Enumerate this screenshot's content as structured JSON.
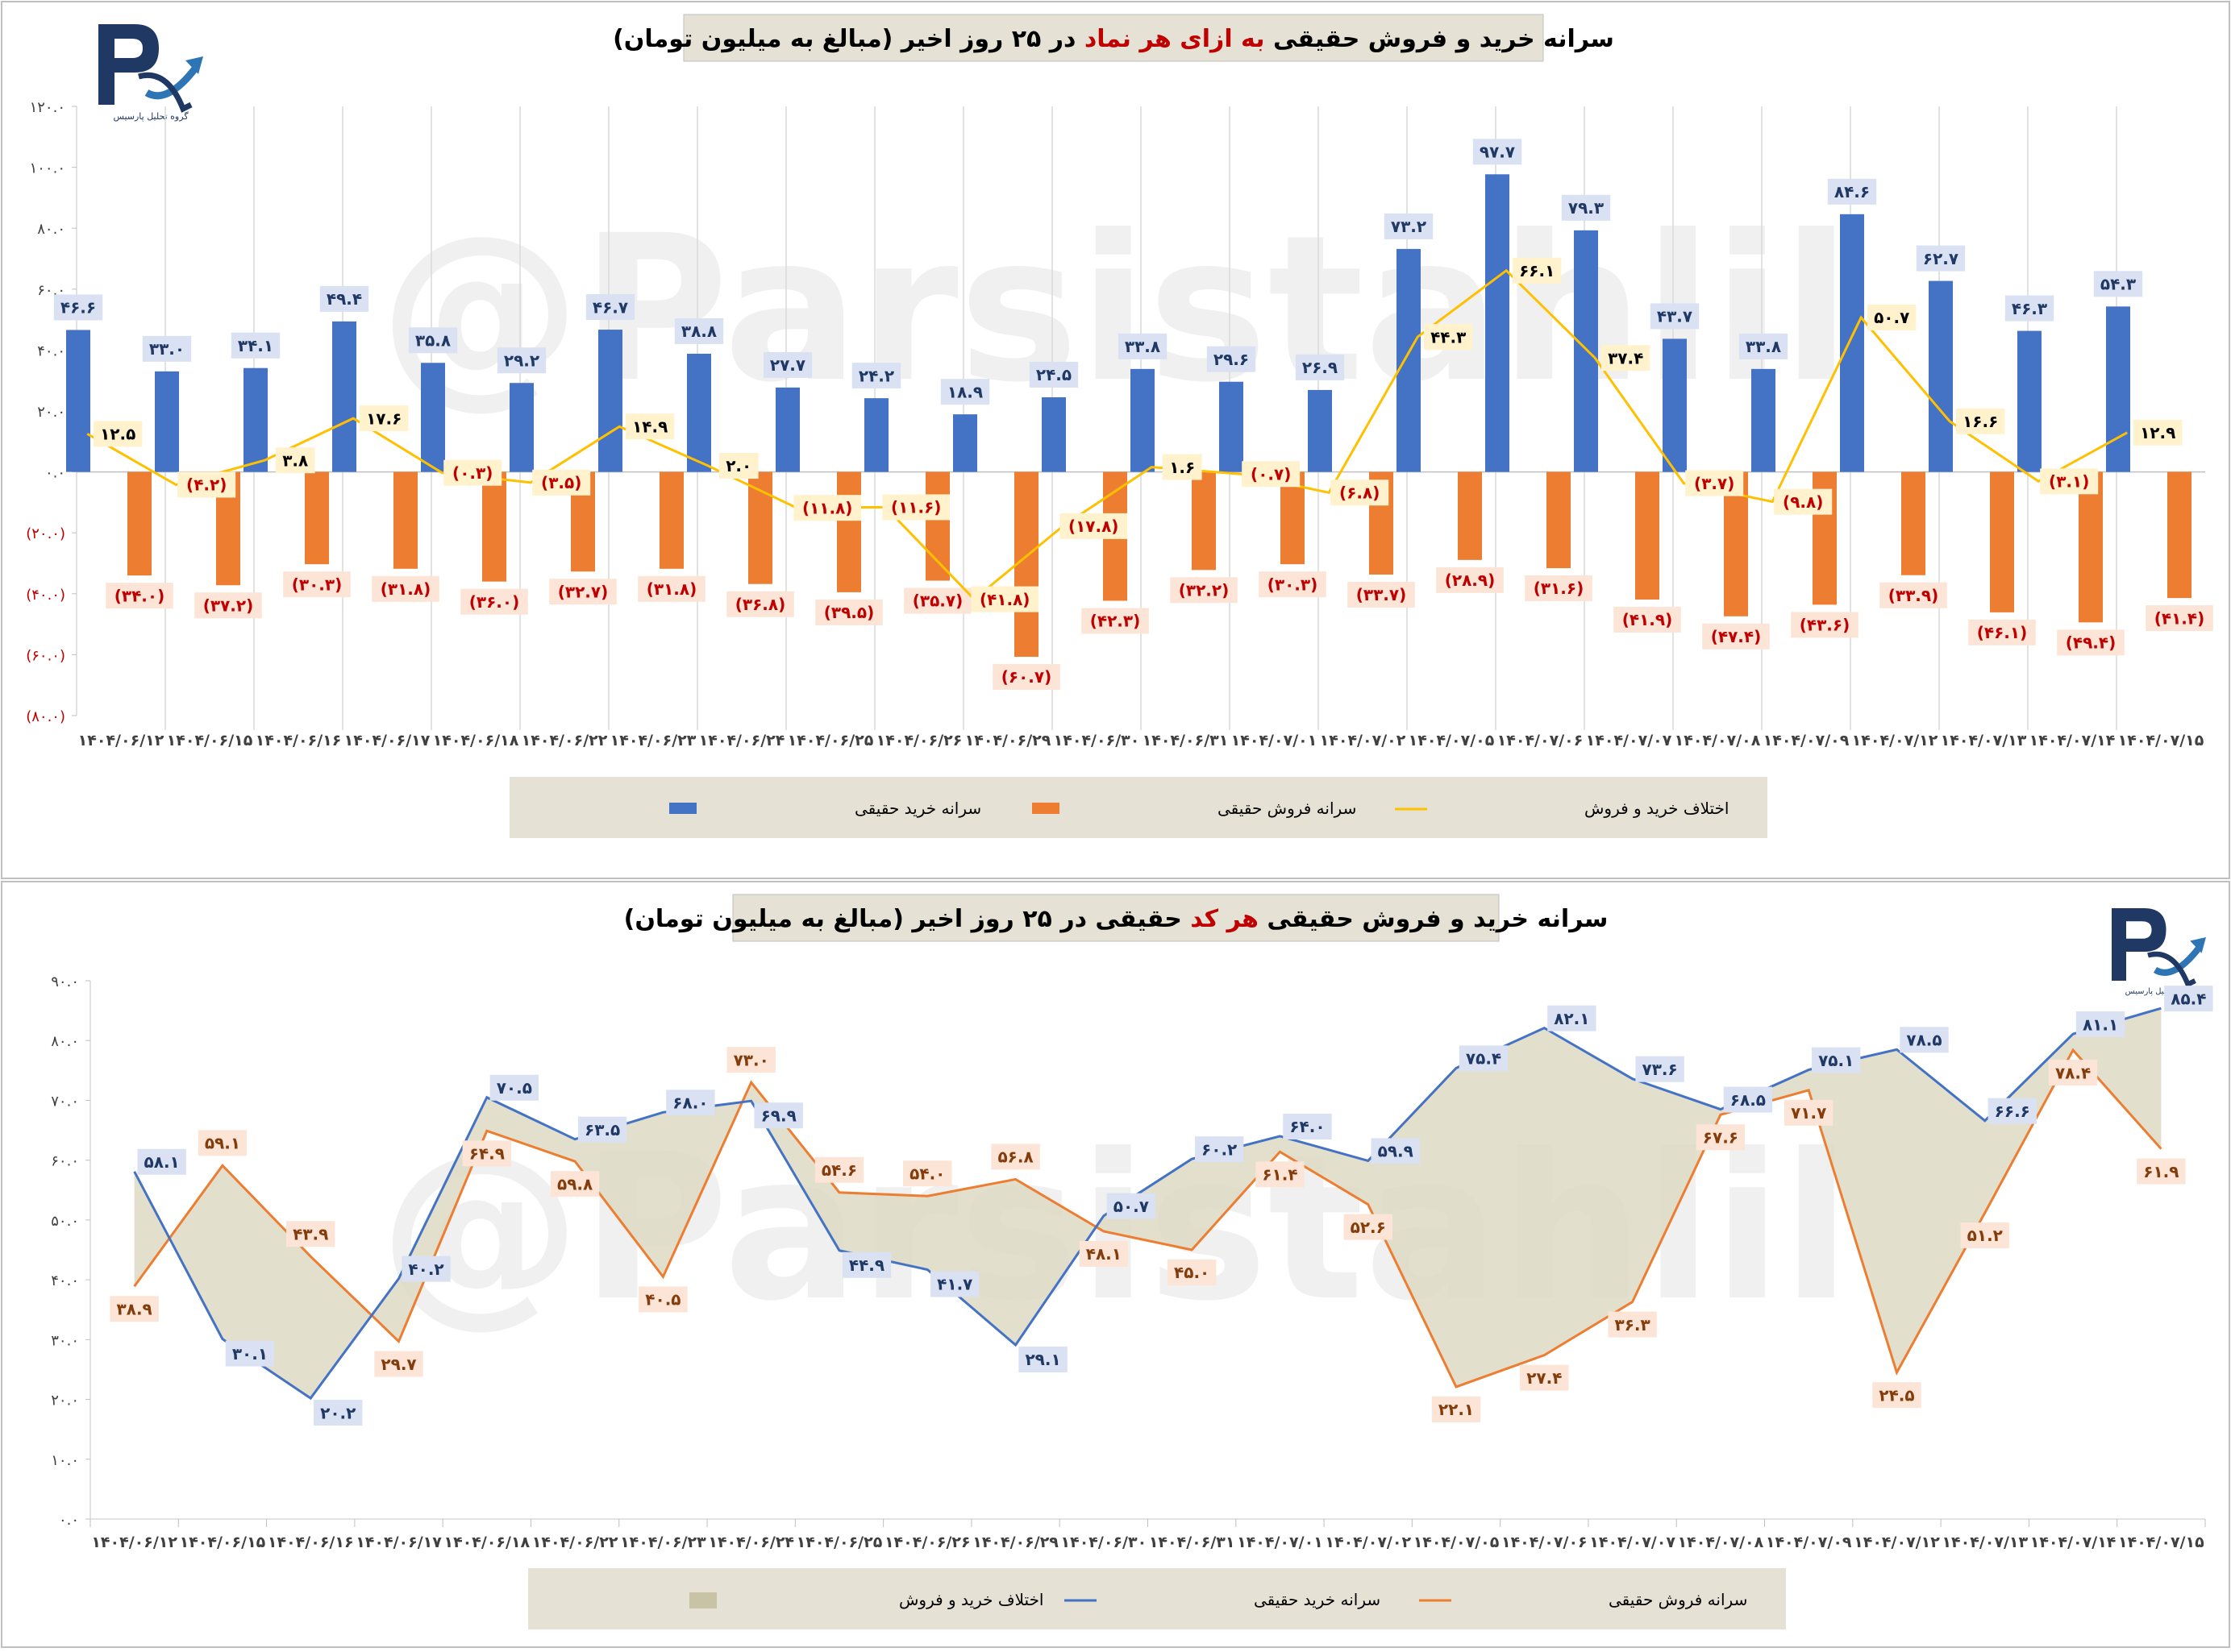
{
  "watermark": "@Parsistahlil",
  "logo": {
    "caption": "گروه تحلیل پارسیس",
    "icon": "pr-logo-arrow-icon"
  },
  "dates": [
    "۱۴۰۴/۰۶/۱۲",
    "۱۴۰۴/۰۶/۱۵",
    "۱۴۰۴/۰۶/۱۶",
    "۱۴۰۴/۰۶/۱۷",
    "۱۴۰۴/۰۶/۱۸",
    "۱۴۰۴/۰۶/۲۲",
    "۱۴۰۴/۰۶/۲۳",
    "۱۴۰۴/۰۶/۲۴",
    "۱۴۰۴/۰۶/۲۵",
    "۱۴۰۴/۰۶/۲۶",
    "۱۴۰۴/۰۶/۲۹",
    "۱۴۰۴/۰۶/۳۰",
    "۱۴۰۴/۰۶/۳۱",
    "۱۴۰۴/۰۷/۰۱",
    "۱۴۰۴/۰۷/۰۲",
    "۱۴۰۴/۰۷/۰۵",
    "۱۴۰۴/۰۷/۰۶",
    "۱۴۰۴/۰۷/۰۷",
    "۱۴۰۴/۰۷/۰۸",
    "۱۴۰۴/۰۷/۰۹",
    "۱۴۰۴/۰۷/۱۲",
    "۱۴۰۴/۰۷/۱۳",
    "۱۴۰۴/۰۷/۱۴",
    "۱۴۰۴/۰۷/۱۵"
  ],
  "colors": {
    "buy": "#4472C4",
    "sell": "#ED7D31",
    "diff": "#FFC000",
    "area": "#DDD9C4",
    "title_red": "#C00000",
    "legend_bg": "#E5E2D5",
    "label_blue_bg": "#D9E1F2",
    "label_orange_bg": "#FCE4D6",
    "label_yellow_bg": "#FFF2CC"
  },
  "chart_data": [
    {
      "type": "bar",
      "title_parts": [
        "سرانه خرید و فروش حقیقی ",
        "به ازای هر نماد",
        " در ۲۵ روز اخیر (مبالغ به میلیون تومان)"
      ],
      "ylim": [
        -80,
        120
      ],
      "yticks": [
        120,
        100,
        80,
        60,
        40,
        20,
        0,
        -20,
        -40,
        -60,
        -80
      ],
      "ytick_labels": [
        "۱۲۰.۰",
        "۱۰۰.۰",
        "۸۰.۰",
        "۶۰.۰",
        "۴۰.۰",
        "۲۰.۰",
        "۰.۰",
        "(۲۰.۰)",
        "(۴۰.۰)",
        "(۶۰.۰)",
        "(۸۰.۰)"
      ],
      "series": [
        {
          "name": "سرانه خرید حقیقی",
          "type": "bar",
          "values": [
            46.6,
            33.0,
            34.1,
            49.4,
            35.8,
            29.2,
            46.7,
            38.8,
            27.7,
            24.2,
            18.9,
            24.5,
            33.8,
            29.6,
            26.9,
            73.2,
            97.7,
            79.3,
            43.7,
            33.8,
            84.6,
            62.7,
            46.3,
            54.3
          ],
          "labels": [
            "۴۶.۶",
            "۳۳.۰",
            "۳۴.۱",
            "۴۹.۴",
            "۳۵.۸",
            "۲۹.۲",
            "۴۶.۷",
            "۳۸.۸",
            "۲۷.۷",
            "۲۴.۲",
            "۱۸.۹",
            "۲۴.۵",
            "۳۳.۸",
            "۲۹.۶",
            "۲۶.۹",
            "۷۳.۲",
            "۹۷.۷",
            "۷۹.۳",
            "۴۳.۷",
            "۳۳.۸",
            "۸۴.۶",
            "۶۲.۷",
            "۴۶.۳",
            "۵۴.۳"
          ]
        },
        {
          "name": "سرانه فروش حقیقی",
          "type": "bar",
          "values": [
            -34.0,
            -37.2,
            -30.3,
            -31.8,
            -36.0,
            -32.7,
            -31.8,
            -36.8,
            -39.5,
            -35.7,
            -60.7,
            -42.3,
            -32.2,
            -30.3,
            -33.7,
            -28.9,
            -31.6,
            -41.9,
            -47.4,
            -43.6,
            -33.9,
            -46.1,
            -49.4,
            -41.4
          ],
          "labels": [
            "(۳۴.۰)",
            "(۳۷.۲)",
            "(۳۰.۳)",
            "(۳۱.۸)",
            "(۳۶.۰)",
            "(۳۲.۷)",
            "(۳۱.۸)",
            "(۳۶.۸)",
            "(۳۹.۵)",
            "(۳۵.۷)",
            "(۶۰.۷)",
            "(۴۲.۳)",
            "(۳۲.۲)",
            "(۳۰.۳)",
            "(۳۳.۷)",
            "(۲۸.۹)",
            "(۳۱.۶)",
            "(۴۱.۹)",
            "(۴۷.۴)",
            "(۴۳.۶)",
            "(۳۳.۹)",
            "(۴۶.۱)",
            "(۴۹.۴)",
            "(۴۱.۴)"
          ]
        },
        {
          "name": "اختلاف خرید و فروش",
          "type": "line",
          "values": [
            12.5,
            -4.2,
            3.8,
            17.6,
            -0.3,
            -3.5,
            14.9,
            2.0,
            -11.8,
            -11.6,
            -41.8,
            -17.8,
            1.6,
            -0.7,
            -6.8,
            44.3,
            66.1,
            37.4,
            -3.7,
            -9.8,
            50.7,
            16.6,
            -3.1,
            12.9
          ],
          "labels": [
            "۱۲.۵",
            "(۴.۲)",
            "۳.۸",
            "۱۷.۶",
            "(۰.۳)",
            "(۳.۵)",
            "۱۴.۹",
            "۲.۰",
            "(۱۱.۸)",
            "(۱۱.۶)",
            "(۴۱.۸)",
            "(۱۷.۸)",
            "۱.۶",
            "(۰.۷)",
            "(۶.۸)",
            "۴۴.۳",
            "۶۶.۱",
            "۳۷.۴",
            "(۳.۷)",
            "(۹.۸)",
            "۵۰.۷",
            "۱۶.۶",
            "(۳.۱)",
            "۱۲.۹"
          ]
        }
      ],
      "legend_position": "bottom"
    },
    {
      "type": "line",
      "title_parts": [
        "سرانه خرید و فروش حقیقی ",
        "هر کد",
        " حقیقی در ۲۵ روز اخیر (مبالغ به میلیون تومان)"
      ],
      "ylim": [
        0,
        90
      ],
      "yticks": [
        90,
        80,
        70,
        60,
        50,
        40,
        30,
        20,
        10,
        0
      ],
      "ytick_labels": [
        "۹۰.۰",
        "۸۰.۰",
        "۷۰.۰",
        "۶۰.۰",
        "۵۰.۰",
        "۴۰.۰",
        "۳۰.۰",
        "۲۰.۰",
        "۱۰.۰",
        "۰.۰"
      ],
      "series": [
        {
          "name": "سرانه خرید حقیقی",
          "type": "line",
          "values": [
            58.1,
            30.1,
            20.2,
            40.2,
            70.5,
            63.5,
            68.0,
            69.9,
            44.9,
            41.7,
            29.1,
            50.7,
            60.2,
            64.0,
            59.9,
            75.4,
            82.1,
            73.6,
            68.5,
            75.1,
            78.5,
            66.6,
            81.1,
            85.4
          ],
          "labels": [
            "۵۸.۱",
            "۳۰.۱",
            "۲۰.۲",
            "۴۰.۲",
            "۷۰.۵",
            "۶۳.۵",
            "۶۸.۰",
            "۶۹.۹",
            "۴۴.۹",
            "۴۱.۷",
            "۲۹.۱",
            "۵۰.۷",
            "۶۰.۲",
            "۶۴.۰",
            "۵۹.۹",
            "۷۵.۴",
            "۸۲.۱",
            "۷۳.۶",
            "۶۸.۵",
            "۷۵.۱",
            "۷۸.۵",
            "۶۶.۶",
            "۸۱.۱",
            "۸۵.۴"
          ]
        },
        {
          "name": "سرانه فروش حقیقی",
          "type": "line",
          "values": [
            38.9,
            59.1,
            43.9,
            29.7,
            64.9,
            59.8,
            40.5,
            73.0,
            54.6,
            54.0,
            56.8,
            48.1,
            45.0,
            61.4,
            52.6,
            22.1,
            27.4,
            36.3,
            67.6,
            71.7,
            24.5,
            51.2,
            78.4,
            61.9
          ],
          "labels": [
            "۳۸.۹",
            "۵۹.۱",
            "۴۳.۹",
            "۲۹.۷",
            "۶۴.۹",
            "۵۹.۸",
            "۴۰.۵",
            "۷۳.۰",
            "۵۴.۶",
            "۵۴.۰",
            "۵۶.۸",
            "۴۸.۱",
            "۴۵.۰",
            "۶۱.۴",
            "۵۲.۶",
            "۲۲.۱",
            "۲۷.۴",
            "۳۶.۳",
            "۶۷.۶",
            "۷۱.۷",
            "۲۴.۵",
            "۵۱.۲",
            "۷۸.۴",
            "۶۱.۹"
          ]
        },
        {
          "name": "اختلاف خرید و فروش",
          "type": "area"
        }
      ],
      "legend_position": "bottom"
    }
  ]
}
